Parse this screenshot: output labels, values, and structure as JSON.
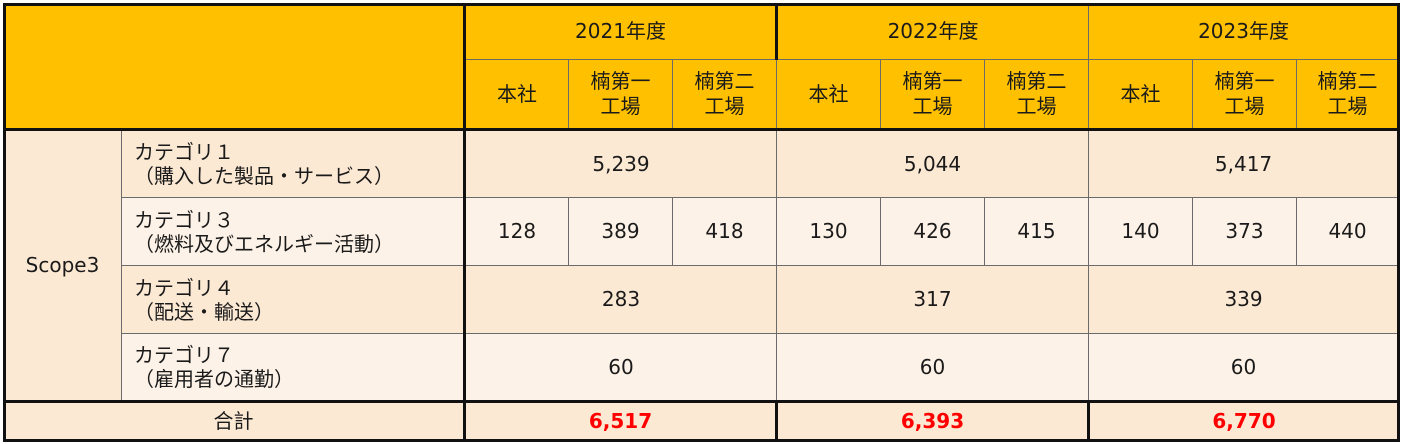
{
  "header": {
    "years": [
      "2021年度",
      "2022年度",
      "2023年度"
    ],
    "sites": [
      "本社",
      "楠第一\n工場",
      "楠第二\n工場"
    ],
    "site_lines": [
      [
        "本社"
      ],
      [
        "楠第一",
        "工場"
      ],
      [
        "楠第二",
        "工場"
      ]
    ]
  },
  "scope_label": "Scope3",
  "categories": [
    {
      "line1": "カテゴリ１",
      "line2": "（購入した製品・サービス）",
      "merged": true,
      "values": [
        "5,239",
        "5,044",
        "5,417"
      ]
    },
    {
      "line1": "カテゴリ３",
      "line2": "（燃料及びエネルギー活動）",
      "merged": false,
      "values": [
        "128",
        "389",
        "418",
        "130",
        "426",
        "415",
        "140",
        "373",
        "440"
      ]
    },
    {
      "line1": "カテゴリ４",
      "line2": "（配送・輸送）",
      "merged": true,
      "values": [
        "283",
        "317",
        "339"
      ]
    },
    {
      "line1": "カテゴリ７",
      "line2": "（雇用者の通勤）",
      "merged": true,
      "values": [
        "60",
        "60",
        "60"
      ]
    }
  ],
  "total": {
    "label": "合計",
    "values": [
      "6,517",
      "6,393",
      "6,770"
    ]
  },
  "colors": {
    "header": "#ffc000",
    "row_light": "#fce9d4",
    "row_lighter": "#fdf2e7",
    "total_value": "#ff0000"
  }
}
